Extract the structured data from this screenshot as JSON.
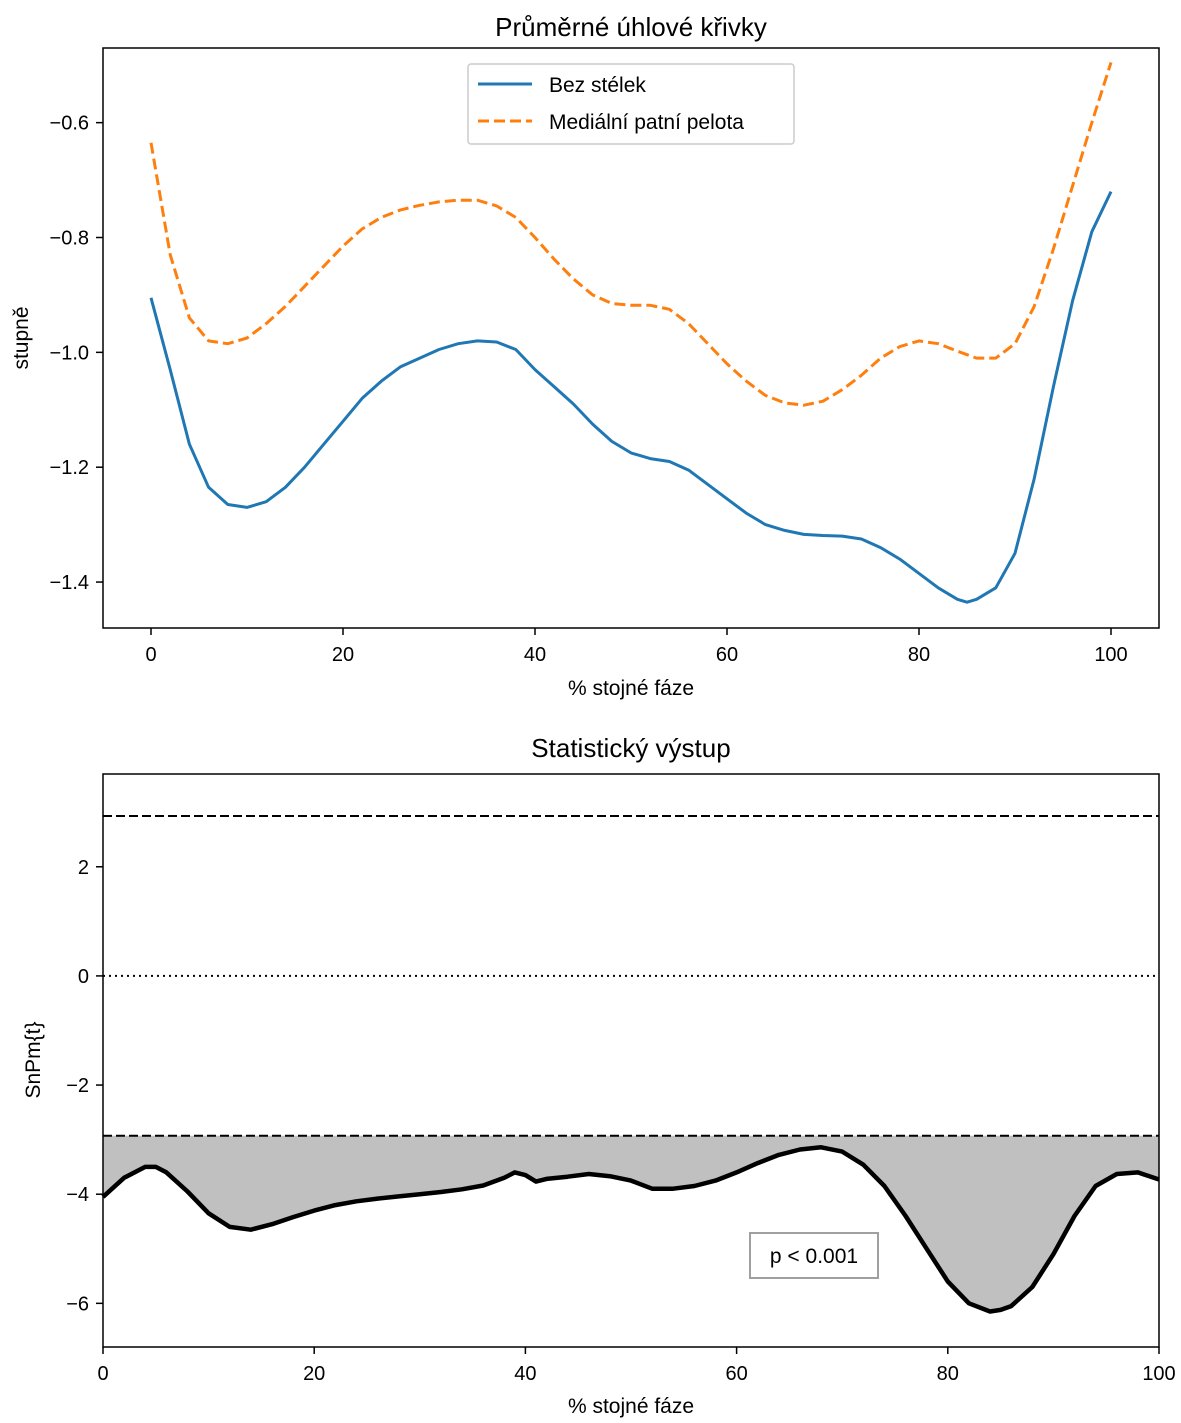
{
  "chart_data": [
    {
      "type": "line",
      "title": "Průměrné úhlové křivky",
      "xlabel": "% stojné fáze",
      "ylabel": "stupně",
      "xlim": [
        -5,
        105
      ],
      "ylim": [
        -1.48,
        -0.47
      ],
      "xticks": [
        0,
        20,
        40,
        60,
        80,
        100
      ],
      "xtick_labels": [
        "0",
        "20",
        "40",
        "60",
        "80",
        "100"
      ],
      "yticks": [
        -1.4,
        -1.2,
        -1.0,
        -0.8,
        -0.6
      ],
      "ytick_labels": [
        "−1.4",
        "−1.2",
        "−1.0",
        "−0.8",
        "−0.6"
      ],
      "grid": false,
      "legend_position": "top-center",
      "series": [
        {
          "name": "Bez stélek",
          "color": "#1f77b4",
          "style": "solid",
          "x": [
            0,
            2,
            4,
            6,
            8,
            10,
            12,
            14,
            16,
            18,
            20,
            22,
            24,
            26,
            28,
            30,
            32,
            34,
            36,
            38,
            40,
            42,
            44,
            46,
            48,
            50,
            52,
            54,
            56,
            58,
            60,
            62,
            64,
            66,
            68,
            70,
            72,
            74,
            76,
            78,
            80,
            82,
            84,
            85,
            86,
            88,
            90,
            92,
            94,
            96,
            98,
            100
          ],
          "y": [
            -0.905,
            -1.03,
            -1.16,
            -1.235,
            -1.265,
            -1.27,
            -1.26,
            -1.235,
            -1.2,
            -1.16,
            -1.12,
            -1.08,
            -1.05,
            -1.025,
            -1.01,
            -0.995,
            -0.985,
            -0.98,
            -0.982,
            -0.995,
            -1.03,
            -1.06,
            -1.09,
            -1.125,
            -1.155,
            -1.175,
            -1.185,
            -1.19,
            -1.205,
            -1.23,
            -1.255,
            -1.28,
            -1.3,
            -1.31,
            -1.317,
            -1.319,
            -1.32,
            -1.325,
            -1.34,
            -1.36,
            -1.385,
            -1.41,
            -1.43,
            -1.435,
            -1.43,
            -1.41,
            -1.35,
            -1.22,
            -1.06,
            -0.91,
            -0.79,
            -0.72
          ]
        },
        {
          "name": "Mediální patní pelota",
          "color": "#ff7f0e",
          "style": "dashed",
          "x": [
            0,
            2,
            4,
            6,
            8,
            10,
            12,
            14,
            16,
            18,
            20,
            22,
            24,
            26,
            28,
            30,
            32,
            34,
            36,
            38,
            40,
            42,
            44,
            46,
            48,
            50,
            52,
            54,
            56,
            58,
            60,
            62,
            64,
            66,
            68,
            70,
            72,
            74,
            76,
            78,
            80,
            82,
            84,
            86,
            88,
            90,
            92,
            94,
            96,
            98,
            100
          ],
          "y": [
            -0.635,
            -0.83,
            -0.94,
            -0.98,
            -0.985,
            -0.975,
            -0.95,
            -0.92,
            -0.885,
            -0.85,
            -0.815,
            -0.785,
            -0.765,
            -0.752,
            -0.744,
            -0.738,
            -0.735,
            -0.735,
            -0.745,
            -0.765,
            -0.8,
            -0.838,
            -0.872,
            -0.9,
            -0.915,
            -0.918,
            -0.918,
            -0.925,
            -0.95,
            -0.985,
            -1.02,
            -1.05,
            -1.075,
            -1.088,
            -1.092,
            -1.085,
            -1.065,
            -1.04,
            -1.01,
            -0.99,
            -0.98,
            -0.985,
            -0.998,
            -1.01,
            -1.01,
            -0.985,
            -0.92,
            -0.82,
            -0.71,
            -0.6,
            -0.495
          ]
        }
      ]
    },
    {
      "type": "area",
      "title": "Statistický výstup",
      "xlabel": "% stojné fáze",
      "ylabel": "SnPm{t}",
      "xlim": [
        0,
        100
      ],
      "ylim": [
        -6.8,
        3.7
      ],
      "xticks": [
        0,
        20,
        40,
        60,
        80,
        100
      ],
      "xtick_labels": [
        "0",
        "20",
        "40",
        "60",
        "80",
        "100"
      ],
      "yticks": [
        -6,
        -4,
        -2,
        0,
        2
      ],
      "ytick_labels": [
        "−6",
        "−4",
        "−2",
        "0",
        "2"
      ],
      "grid": false,
      "threshold_upper": 2.93,
      "threshold_lower": -2.93,
      "zero_line": 0,
      "fill_color": "#c0c0c0",
      "annotation": "p < 0.001",
      "series": [
        {
          "color": "#000000",
          "style": "solid",
          "x": [
            0,
            2,
            4,
            5,
            6,
            8,
            10,
            12,
            14,
            16,
            18,
            20,
            22,
            24,
            26,
            28,
            30,
            32,
            34,
            36,
            38,
            39,
            40,
            41,
            42,
            44,
            46,
            48,
            50,
            52,
            54,
            56,
            58,
            60,
            62,
            64,
            66,
            68,
            70,
            72,
            74,
            76,
            78,
            80,
            82,
            84,
            85,
            86,
            88,
            90,
            92,
            94,
            96,
            98,
            100
          ],
          "y": [
            -4.05,
            -3.7,
            -3.5,
            -3.5,
            -3.6,
            -3.95,
            -4.35,
            -4.6,
            -4.65,
            -4.55,
            -4.42,
            -4.3,
            -4.2,
            -4.13,
            -4.08,
            -4.04,
            -4.0,
            -3.96,
            -3.91,
            -3.84,
            -3.7,
            -3.6,
            -3.65,
            -3.77,
            -3.72,
            -3.68,
            -3.63,
            -3.67,
            -3.75,
            -3.9,
            -3.9,
            -3.85,
            -3.75,
            -3.6,
            -3.43,
            -3.28,
            -3.18,
            -3.14,
            -3.22,
            -3.46,
            -3.85,
            -4.4,
            -5.0,
            -5.6,
            -6.0,
            -6.15,
            -6.12,
            -6.05,
            -5.7,
            -5.1,
            -4.4,
            -3.85,
            -3.63,
            -3.6,
            -3.73
          ]
        }
      ]
    }
  ]
}
